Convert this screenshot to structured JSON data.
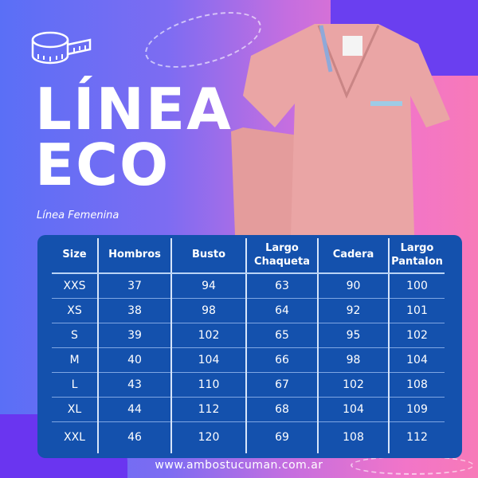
{
  "title_line1": "LÍNEA",
  "title_line2": "ECO",
  "subtitle": "Línea Femenina",
  "colors": {
    "table_bg": "#1451ad",
    "garment": "#e8a3a3",
    "accent_purple": "#6a3ff0"
  },
  "icons": [
    "measuring-tape-icon"
  ],
  "table": {
    "headers": [
      "Size",
      "Hombros",
      "Busto",
      "Largo Chaqueta",
      "Cadera",
      "Largo Pantalon"
    ],
    "rows": [
      [
        "XXS",
        "37",
        "94",
        "63",
        "90",
        "100"
      ],
      [
        "XS",
        "38",
        "98",
        "64",
        "92",
        "101"
      ],
      [
        "S",
        "39",
        "102",
        "65",
        "95",
        "102"
      ],
      [
        "M",
        "40",
        "104",
        "66",
        "98",
        "104"
      ],
      [
        "L",
        "43",
        "110",
        "67",
        "102",
        "108"
      ],
      [
        "XL",
        "44",
        "112",
        "68",
        "104",
        "109"
      ],
      [
        "XXL",
        "46",
        "120",
        "69",
        "108",
        "112"
      ]
    ]
  },
  "website": "www.ambostucuman.com.ar"
}
